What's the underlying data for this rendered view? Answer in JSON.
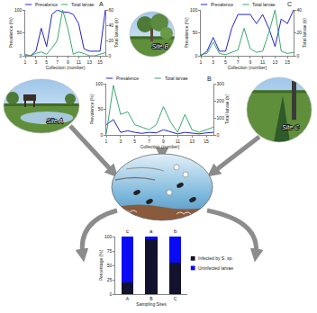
{
  "chart_data": [
    {
      "type": "line",
      "title": "A",
      "x": [
        1,
        2,
        3,
        4,
        5,
        6,
        7,
        8,
        9,
        10,
        11,
        12,
        13,
        14,
        15,
        16
      ],
      "xlim": [
        1,
        16
      ],
      "xticks": [
        1,
        3,
        5,
        7,
        9,
        11,
        13,
        15
      ],
      "x_label": "Collection (number)",
      "y_label": "Prevalence (%)",
      "y2_label": "Total larvae (n)",
      "ylim": [
        0,
        100
      ],
      "yticks": [
        0,
        50,
        100
      ],
      "y2lim": [
        0,
        60
      ],
      "y2ticks": [
        0,
        20,
        40,
        60
      ],
      "grid": false,
      "legend": "top left",
      "series": [
        {
          "name": "Prevalence",
          "color": "#2323c8",
          "values": [
            0,
            0,
            10,
            60,
            20,
            90,
            100,
            95,
            95,
            90,
            70,
            15,
            10,
            10,
            10,
            100
          ]
        },
        {
          "name": "Total larvae",
          "color": "#3aa872",
          "axis": "y2",
          "values": [
            2,
            0,
            3,
            5,
            2,
            10,
            20,
            60,
            35,
            2,
            5,
            3,
            0,
            0,
            2,
            4
          ]
        }
      ]
    },
    {
      "type": "line",
      "title": "C",
      "x": [
        1,
        2,
        3,
        4,
        5,
        6,
        7,
        8,
        9,
        10,
        11,
        12,
        13,
        14,
        15,
        16
      ],
      "xlim": [
        1,
        16
      ],
      "xticks": [
        1,
        3,
        5,
        7,
        9,
        11,
        13,
        15
      ],
      "x_label": "Collection (number)",
      "y_label": "Prevalence (%)",
      "y2_label": "Total larvae (n)",
      "ylim": [
        0,
        100
      ],
      "yticks": [
        0,
        50,
        100
      ],
      "y2lim": [
        0,
        40
      ],
      "y2ticks": [
        0,
        20,
        40
      ],
      "grid": false,
      "legend": "top left",
      "series": [
        {
          "name": "Prevalence",
          "color": "#2323c8",
          "values": [
            0,
            10,
            40,
            10,
            10,
            60,
            90,
            90,
            90,
            70,
            90,
            60,
            20,
            80,
            70,
            100
          ]
        },
        {
          "name": "Total larvae",
          "color": "#3aa872",
          "axis": "y2",
          "values": [
            1,
            2,
            12,
            2,
            1,
            3,
            5,
            24,
            6,
            3,
            4,
            20,
            40,
            4,
            2,
            3
          ]
        }
      ]
    },
    {
      "type": "line",
      "title": "B",
      "x": [
        1,
        2,
        3,
        4,
        5,
        6,
        7,
        8,
        9,
        10,
        11,
        12,
        13,
        14,
        15,
        16
      ],
      "xlim": [
        1,
        16
      ],
      "xticks": [
        1,
        3,
        5,
        7,
        9,
        11,
        13,
        15
      ],
      "x_label": "Collection (number)",
      "y_label": "Prevalence (%)",
      "y2_label": "Total larvae (n)",
      "ylim": [
        0,
        100
      ],
      "yticks": [
        0,
        50,
        100
      ],
      "y2lim": [
        0,
        300
      ],
      "y2ticks": [
        0,
        100,
        200,
        300
      ],
      "grid": false,
      "legend": "top left",
      "series": [
        {
          "name": "Prevalence",
          "color": "#2323c8",
          "values": [
            20,
            30,
            5,
            8,
            5,
            3,
            5,
            4,
            10,
            6,
            2,
            5,
            3,
            2,
            4,
            5
          ]
        },
        {
          "name": "Total larvae",
          "color": "#3aa872",
          "axis": "y2",
          "values": [
            5,
            290,
            120,
            135,
            60,
            45,
            30,
            60,
            165,
            75,
            15,
            120,
            30,
            15,
            30,
            45
          ]
        }
      ]
    },
    {
      "type": "bar",
      "stacked": true,
      "categories": [
        "A",
        "B",
        "C"
      ],
      "x_label": "Sampling Sites",
      "y_label": "Percentage (%)",
      "ylim": [
        0,
        100
      ],
      "yticks": [
        0,
        25,
        50,
        75,
        100
      ],
      "grid": false,
      "legend": "right",
      "annotations": [
        {
          "category": "A",
          "text": "c"
        },
        {
          "category": "B",
          "text": "a"
        },
        {
          "category": "C",
          "text": "b"
        }
      ],
      "series": [
        {
          "name": "Infected by S. sp.",
          "color": "#12122e",
          "values": [
            20,
            96,
            55
          ]
        },
        {
          "name": "Uninfected larvae",
          "color": "#0a0af5",
          "values": [
            80,
            4,
            45
          ]
        }
      ]
    }
  ],
  "sites": [
    {
      "label": "Site B"
    },
    {
      "label": "Site A"
    },
    {
      "label": "Site C"
    }
  ]
}
